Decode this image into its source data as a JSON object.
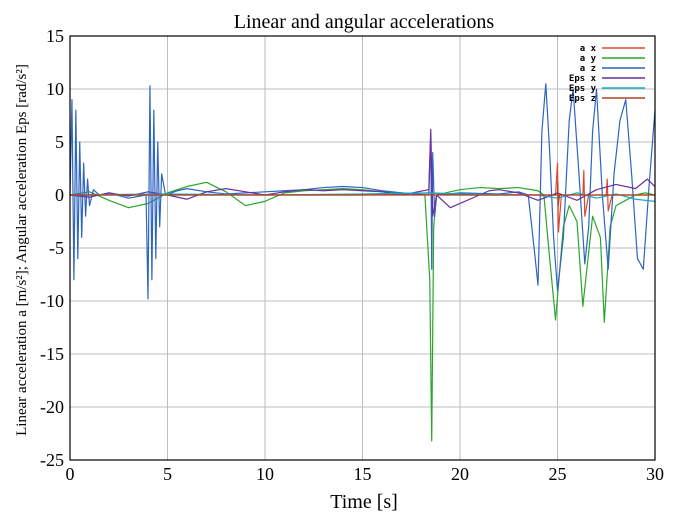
{
  "chart_data": {
    "type": "line",
    "title": "Linear and angular accelerations",
    "xlabel": "Time [s]",
    "ylabel": "Linear acceleration a [m/s²]; Angular acceleration Eps [rad/s²]",
    "xlim": [
      0,
      30
    ],
    "ylim": [
      -25,
      15
    ],
    "x_ticks": [
      "0",
      "5",
      "10",
      "15",
      "20",
      "25",
      "30"
    ],
    "y_ticks": [
      "15",
      "10",
      "5",
      "0",
      "-5",
      "-10",
      "-15",
      "-20",
      "-25"
    ],
    "grid": true,
    "legend_position": "top-right",
    "series": [
      {
        "name": "a x",
        "color": "#e2462a",
        "points": [
          [
            0,
            0
          ],
          [
            5,
            0
          ],
          [
            10,
            0
          ],
          [
            15,
            0
          ],
          [
            18.5,
            0.2
          ],
          [
            20,
            0
          ],
          [
            24.9,
            0
          ],
          [
            25.0,
            3.0
          ],
          [
            25.05,
            -3.5
          ],
          [
            25.2,
            0
          ],
          [
            26.3,
            0
          ],
          [
            26.35,
            2.3
          ],
          [
            26.4,
            -2.0
          ],
          [
            26.6,
            0
          ],
          [
            27.5,
            0
          ],
          [
            27.55,
            1.5
          ],
          [
            27.6,
            -1.5
          ],
          [
            27.8,
            0
          ],
          [
            30,
            0
          ]
        ]
      },
      {
        "name": "a y",
        "color": "#2aa62a",
        "points": [
          [
            0,
            0
          ],
          [
            1,
            0.3
          ],
          [
            2,
            -0.5
          ],
          [
            3,
            -1.2
          ],
          [
            4,
            -0.8
          ],
          [
            5,
            0.2
          ],
          [
            6,
            0.8
          ],
          [
            7,
            1.2
          ],
          [
            8,
            0.3
          ],
          [
            9,
            -1.0
          ],
          [
            10,
            -0.6
          ],
          [
            11,
            0.2
          ],
          [
            12,
            0.4
          ],
          [
            13,
            0.5
          ],
          [
            14,
            0.6
          ],
          [
            15,
            0.5
          ],
          [
            16,
            0.3
          ],
          [
            17,
            0.2
          ],
          [
            18.2,
            0
          ],
          [
            18.45,
            -8
          ],
          [
            18.55,
            -23.2
          ],
          [
            18.65,
            -3
          ],
          [
            18.8,
            0
          ],
          [
            19.5,
            0.3
          ],
          [
            20,
            0.5
          ],
          [
            21,
            0.7
          ],
          [
            22,
            0.6
          ],
          [
            23,
            0.7
          ],
          [
            24,
            0.4
          ],
          [
            24.3,
            0
          ],
          [
            24.6,
            -6
          ],
          [
            24.9,
            -11.8
          ],
          [
            25.3,
            -3
          ],
          [
            25.6,
            -1
          ],
          [
            26,
            -2.5
          ],
          [
            26.3,
            -10.5
          ],
          [
            26.8,
            -2
          ],
          [
            27.2,
            -4
          ],
          [
            27.4,
            -12
          ],
          [
            27.7,
            -3
          ],
          [
            28,
            -1
          ],
          [
            28.5,
            -0.5
          ],
          [
            29,
            0
          ],
          [
            29.5,
            0.2
          ],
          [
            30,
            0
          ]
        ]
      },
      {
        "name": "a z",
        "color": "#2e64c2",
        "points": [
          [
            0,
            0
          ],
          [
            0.1,
            9
          ],
          [
            0.2,
            -8
          ],
          [
            0.3,
            8
          ],
          [
            0.4,
            -6
          ],
          [
            0.5,
            5
          ],
          [
            0.6,
            -4
          ],
          [
            0.7,
            3
          ],
          [
            0.8,
            -2
          ],
          [
            0.9,
            1.5
          ],
          [
            1.0,
            -1
          ],
          [
            1.2,
            0.5
          ],
          [
            1.5,
            0
          ],
          [
            2,
            0.2
          ],
          [
            3,
            -0.3
          ],
          [
            3.9,
            0
          ],
          [
            4.0,
            -9.8
          ],
          [
            4.1,
            10.3
          ],
          [
            4.2,
            -8
          ],
          [
            4.3,
            8
          ],
          [
            4.4,
            -6
          ],
          [
            4.5,
            5
          ],
          [
            4.6,
            -3
          ],
          [
            4.7,
            2
          ],
          [
            4.9,
            0
          ],
          [
            5.5,
            0.4
          ],
          [
            6,
            0.6
          ],
          [
            7,
            0.3
          ],
          [
            8,
            0.1
          ],
          [
            9,
            0.2
          ],
          [
            10,
            0.3
          ],
          [
            11,
            0.4
          ],
          [
            12,
            0.5
          ],
          [
            13,
            0.7
          ],
          [
            14,
            0.8
          ],
          [
            15,
            0.7
          ],
          [
            16,
            0.4
          ],
          [
            17,
            0.2
          ],
          [
            18.4,
            0
          ],
          [
            18.5,
            5.7
          ],
          [
            18.55,
            -7
          ],
          [
            18.6,
            4
          ],
          [
            18.7,
            -2
          ],
          [
            18.8,
            0
          ],
          [
            20,
            0.2
          ],
          [
            22,
            0.1
          ],
          [
            23,
            0.3
          ],
          [
            23.5,
            0
          ],
          [
            23.8,
            -5
          ],
          [
            24.0,
            -8.5
          ],
          [
            24.2,
            6
          ],
          [
            24.4,
            10.5
          ],
          [
            24.6,
            4
          ],
          [
            24.8,
            -4
          ],
          [
            25.0,
            -9
          ],
          [
            25.3,
            -4
          ],
          [
            25.6,
            7
          ],
          [
            25.8,
            10
          ],
          [
            26.1,
            2
          ],
          [
            26.4,
            -6.5
          ],
          [
            26.6,
            -3
          ],
          [
            26.8,
            6
          ],
          [
            27.0,
            10
          ],
          [
            27.3,
            0
          ],
          [
            27.6,
            -7
          ],
          [
            27.9,
            2
          ],
          [
            28.2,
            7
          ],
          [
            28.5,
            9
          ],
          [
            28.8,
            2
          ],
          [
            29.1,
            -6
          ],
          [
            29.4,
            -7
          ],
          [
            29.7,
            1
          ],
          [
            30,
            8
          ]
        ]
      },
      {
        "name": "Eps x",
        "color": "#6a2fa0",
        "points": [
          [
            0,
            0
          ],
          [
            1,
            -0.2
          ],
          [
            2,
            0.2
          ],
          [
            3,
            -0.1
          ],
          [
            4,
            0.3
          ],
          [
            5,
            0
          ],
          [
            6,
            -0.4
          ],
          [
            7,
            0.3
          ],
          [
            8,
            0.6
          ],
          [
            9,
            0.3
          ],
          [
            10,
            0
          ],
          [
            11,
            0.3
          ],
          [
            12,
            0.5
          ],
          [
            13,
            0.4
          ],
          [
            14,
            0.5
          ],
          [
            15,
            0.4
          ],
          [
            16,
            0.3
          ],
          [
            17,
            0
          ],
          [
            18.4,
            0.5
          ],
          [
            18.5,
            6.2
          ],
          [
            18.6,
            -2
          ],
          [
            18.8,
            0
          ],
          [
            19.5,
            -1.2
          ],
          [
            20,
            -0.8
          ],
          [
            21,
            0
          ],
          [
            21.5,
            0.4
          ],
          [
            22,
            0.5
          ],
          [
            23,
            0.2
          ],
          [
            24,
            -0.5
          ],
          [
            25,
            0.2
          ],
          [
            26,
            -0.5
          ],
          [
            27,
            0.5
          ],
          [
            28,
            1.0
          ],
          [
            29,
            0.6
          ],
          [
            29.6,
            1.5
          ],
          [
            30,
            0.8
          ]
        ]
      },
      {
        "name": "Eps y",
        "color": "#1aa9c2",
        "points": [
          [
            0,
            0
          ],
          [
            5,
            0.1
          ],
          [
            10,
            0
          ],
          [
            15,
            0.1
          ],
          [
            18.5,
            0.2
          ],
          [
            20,
            0.1
          ],
          [
            24,
            0
          ],
          [
            25,
            -0.3
          ],
          [
            26,
            0.2
          ],
          [
            27,
            -0.3
          ],
          [
            28,
            0.1
          ],
          [
            29,
            -0.4
          ],
          [
            30,
            -0.6
          ]
        ]
      },
      {
        "name": "Eps z",
        "color": "#b24020",
        "points": [
          [
            0,
            0
          ],
          [
            10,
            0
          ],
          [
            20,
            0
          ],
          [
            25,
            0
          ],
          [
            25.02,
            1.2
          ],
          [
            25.04,
            -1.0
          ],
          [
            25.1,
            0
          ],
          [
            30,
            0
          ]
        ]
      }
    ]
  }
}
